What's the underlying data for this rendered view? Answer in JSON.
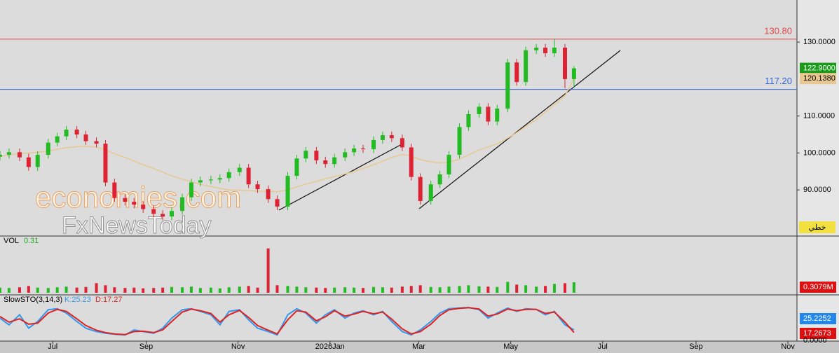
{
  "chart_data": {
    "type": "candlestick",
    "x": [
      0,
      6,
      13,
      19,
      25,
      32,
      38,
      44,
      51,
      57,
      64,
      70,
      76,
      83,
      89,
      95,
      102,
      108,
      114,
      121,
      127,
      133,
      140,
      146,
      152,
      159,
      165,
      171,
      178,
      184,
      191,
      197,
      203,
      210,
      216,
      222,
      229,
      235,
      241,
      248,
      254,
      260,
      267,
      273,
      279,
      286,
      292,
      298,
      305,
      311,
      318,
      324,
      330,
      337,
      343,
      349,
      356,
      362,
      368,
      375,
      381
    ],
    "open": [
      99.0,
      99.5,
      100.2,
      98.8,
      96.2,
      99.5,
      102.8,
      104.5,
      106.3,
      105.0,
      103.2,
      102.5,
      92.0,
      87.8,
      86.8,
      86.0,
      84.8,
      83.5,
      82.8,
      84.3,
      88.0,
      92.0,
      92.6,
      92.8,
      93.2,
      94.8,
      96.0,
      91.5,
      90.2,
      87.5,
      85.5,
      93.8,
      98.5,
      100.6,
      98.0,
      97.0,
      98.8,
      100.2,
      101.2,
      101.0,
      103.5,
      104.8,
      104.0,
      101.5,
      93.5,
      87.0,
      91.5,
      94.2,
      99.5,
      107.0,
      110.5,
      112.5,
      108.5,
      112.0,
      124.5,
      119.2,
      127.8,
      128.5,
      127.0,
      128.5,
      120.0
    ],
    "high": [
      100.5,
      101.2,
      101.2,
      99.8,
      100.5,
      103.8,
      105.5,
      107.3,
      107.3,
      106.0,
      104.2,
      103.5,
      93.0,
      88.8,
      87.8,
      87.0,
      85.8,
      84.5,
      85.3,
      89.0,
      93.0,
      93.6,
      93.8,
      94.2,
      95.8,
      97.0,
      97.0,
      92.5,
      91.2,
      88.5,
      94.8,
      99.5,
      101.6,
      101.6,
      99.0,
      99.8,
      101.2,
      102.2,
      102.2,
      104.5,
      105.8,
      105.8,
      105.0,
      102.5,
      94.5,
      92.5,
      95.2,
      100.5,
      108.0,
      111.5,
      113.5,
      113.5,
      113.0,
      125.5,
      125.5,
      128.8,
      129.5,
      129.5,
      130.8,
      129.5,
      123.5
    ],
    "low": [
      98.0,
      98.5,
      97.8,
      95.2,
      95.2,
      98.5,
      101.8,
      103.5,
      104.0,
      102.2,
      101.5,
      91.0,
      86.8,
      85.8,
      85.0,
      83.8,
      82.5,
      81.8,
      81.8,
      83.3,
      87.0,
      91.0,
      91.6,
      91.8,
      92.2,
      93.8,
      90.5,
      89.2,
      86.5,
      84.5,
      84.5,
      92.8,
      97.5,
      97.0,
      96.0,
      96.0,
      97.8,
      99.2,
      100.0,
      100.0,
      102.5,
      103.0,
      100.5,
      92.5,
      86.0,
      86.0,
      90.5,
      93.2,
      98.5,
      106.0,
      109.5,
      107.5,
      107.5,
      111.0,
      118.2,
      118.2,
      126.8,
      126.0,
      126.0,
      117.5,
      117.8
    ],
    "close": [
      99.5,
      100.2,
      98.8,
      96.2,
      99.5,
      102.8,
      104.5,
      106.3,
      105.0,
      103.2,
      102.5,
      92.0,
      87.8,
      86.8,
      86.0,
      84.8,
      83.5,
      82.8,
      84.3,
      88.0,
      92.0,
      92.6,
      92.8,
      93.2,
      94.8,
      96.0,
      91.5,
      90.2,
      87.5,
      85.5,
      93.8,
      98.5,
      100.6,
      98.0,
      97.0,
      98.8,
      100.2,
      101.2,
      101.0,
      103.5,
      104.8,
      104.0,
      101.5,
      93.5,
      87.0,
      91.5,
      94.2,
      99.5,
      107.0,
      110.5,
      112.5,
      108.5,
      112.0,
      124.5,
      119.2,
      127.8,
      128.5,
      127.0,
      128.5,
      120.0,
      122.9
    ],
    "up_color": "#22bb22",
    "down_color": "#dd2233",
    "last_close_label": "122.9000",
    "moving_average": {
      "color": "#e8c890",
      "last_label": "120.1380",
      "values": [
        99.0,
        99.5,
        99.8,
        100.0,
        100.2,
        100.5,
        101.0,
        101.4,
        101.7,
        101.8,
        101.6,
        100.8,
        99.8,
        98.8,
        97.8,
        96.8,
        95.8,
        94.8,
        93.8,
        92.9,
        92.2,
        91.5,
        90.9,
        90.4,
        90.0,
        89.9,
        89.8,
        89.7,
        89.6,
        89.5,
        90.0,
        90.8,
        91.6,
        92.3,
        93.0,
        93.6,
        94.3,
        95.0,
        95.8,
        96.8,
        97.8,
        98.8,
        99.6,
        99.2,
        98.2,
        97.6,
        97.3,
        97.5,
        98.3,
        99.5,
        100.8,
        101.6,
        102.5,
        104.0,
        105.5,
        107.2,
        109.0,
        111.0,
        113.0,
        115.5,
        120.138
      ]
    },
    "hlines": [
      {
        "value": 130.8,
        "label": "130.80",
        "color": "#e04848"
      },
      {
        "value": 117.2,
        "label": "117.20",
        "color": "#3366dd"
      }
    ],
    "xlim": [
      0,
      529
    ],
    "xticks": [
      {
        "value": 35,
        "label": "Jul"
      },
      {
        "value": 97,
        "label": "Sep"
      },
      {
        "value": 158,
        "label": "Nov"
      },
      {
        "value": 219,
        "label": "2026Jan"
      },
      {
        "value": 278,
        "label": "Mar"
      },
      {
        "value": 339,
        "label": "May"
      },
      {
        "value": 400,
        "label": "Jul"
      },
      {
        "value": 462,
        "label": "Sep"
      },
      {
        "value": 523,
        "label": "Nov"
      }
    ],
    "ylim": [
      77.7,
      141.4
    ],
    "yticks": [
      {
        "value": 130,
        "label": "130.0000"
      },
      {
        "value": 110,
        "label": "110.0000"
      },
      {
        "value": 100,
        "label": "100.0000"
      },
      {
        "value": 90,
        "label": "90.0000"
      }
    ],
    "button": "خطي",
    "watermark": [
      "economies.com",
      "FxNewsToday"
    ],
    "volume": {
      "name": "VOL",
      "last": 0.31,
      "last_label": "0.31",
      "axis_label": "0.3079M",
      "ylim": [
        0,
        1.6
      ],
      "values": [
        0.15,
        0.14,
        0.16,
        0.2,
        0.15,
        0.14,
        0.16,
        0.18,
        0.15,
        0.17,
        0.28,
        0.22,
        0.16,
        0.14,
        0.15,
        0.13,
        0.14,
        0.15,
        0.17,
        0.16,
        0.18,
        0.14,
        0.15,
        0.13,
        0.16,
        0.18,
        0.2,
        0.15,
        1.3,
        0.22,
        0.2,
        0.18,
        0.16,
        0.15,
        0.14,
        0.15,
        0.16,
        0.15,
        0.14,
        0.17,
        0.16,
        0.15,
        0.18,
        0.2,
        0.22,
        0.17,
        0.16,
        0.18,
        0.2,
        0.22,
        0.19,
        0.18,
        0.17,
        0.32,
        0.24,
        0.22,
        0.18,
        0.2,
        0.26,
        0.28,
        0.3079
      ]
    },
    "stochastic": {
      "name": "SlowSTO(3,14,3)",
      "ylim": [
        0,
        100
      ],
      "bottom_label": "0.0000",
      "series": [
        {
          "name": "K",
          "label": "K:25.23",
          "axis_label": "25.2252",
          "color": "#3399ee",
          "values": [
            60,
            40,
            70,
            30,
            50,
            85,
            88,
            75,
            50,
            30,
            20,
            15,
            12,
            10,
            25,
            20,
            15,
            30,
            60,
            85,
            88,
            80,
            70,
            40,
            80,
            85,
            55,
            30,
            20,
            10,
            70,
            88,
            75,
            45,
            70,
            85,
            60,
            75,
            82,
            70,
            80,
            50,
            20,
            10,
            25,
            50,
            75,
            88,
            90,
            92,
            85,
            60,
            75,
            90,
            80,
            88,
            86,
            70,
            80,
            40,
            25.2252
          ]
        },
        {
          "name": "D",
          "label": "D:17.27",
          "axis_label": "17.2673",
          "color": "#dd2222",
          "values": [
            65,
            48,
            58,
            42,
            45,
            75,
            86,
            80,
            58,
            38,
            24,
            17,
            13,
            11,
            20,
            21,
            17,
            25,
            50,
            78,
            87,
            82,
            74,
            48,
            70,
            83,
            62,
            38,
            24,
            13,
            55,
            82,
            78,
            52,
            64,
            82,
            66,
            72,
            80,
            73,
            78,
            57,
            28,
            13,
            20,
            42,
            68,
            85,
            89,
            91,
            87,
            66,
            72,
            87,
            82,
            86,
            86,
            74,
            78,
            48,
            17.2673
          ]
        }
      ]
    }
  }
}
